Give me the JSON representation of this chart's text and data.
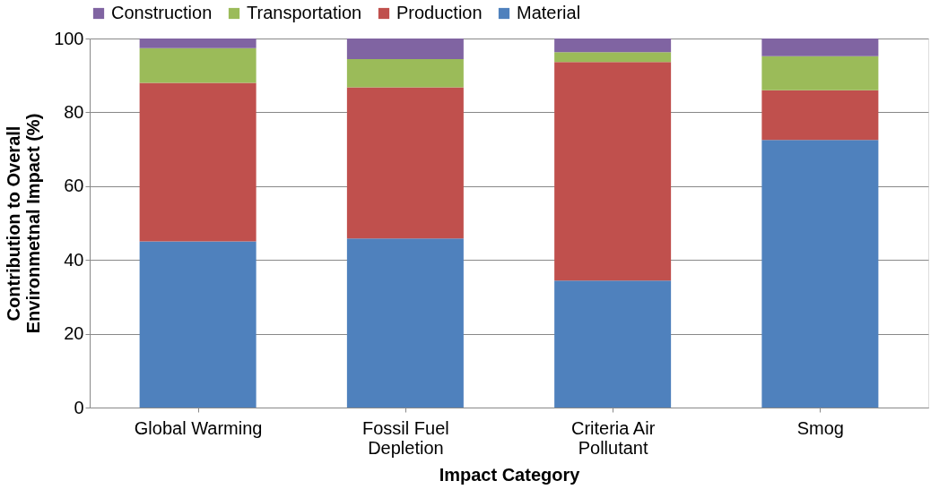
{
  "chart_data": {
    "type": "bar",
    "stacked": true,
    "xlabel": "Impact Category",
    "ylabel": "Contribution to Overall\nEnvironmetnal Impact (%)",
    "categories": [
      "Global Warming",
      "Fossil Fuel\nDepletion",
      "Criteria Air\nPollutant",
      "Smog"
    ],
    "series": [
      {
        "name": "Material",
        "color": "#4f81bd",
        "values": [
          45.0,
          45.8,
          34.4,
          72.5
        ]
      },
      {
        "name": "Production",
        "color": "#c0504d",
        "values": [
          43.0,
          41.0,
          59.2,
          13.5
        ]
      },
      {
        "name": "Transportation",
        "color": "#9bbb59",
        "values": [
          9.4,
          7.6,
          2.7,
          9.2
        ]
      },
      {
        "name": "Construction",
        "color": "#8064a2",
        "values": [
          2.6,
          5.6,
          3.7,
          4.8
        ]
      }
    ],
    "ylim": [
      0,
      100
    ],
    "yticks": [
      0,
      20,
      40,
      60,
      80,
      100
    ],
    "grid": "y",
    "legend": "top"
  }
}
